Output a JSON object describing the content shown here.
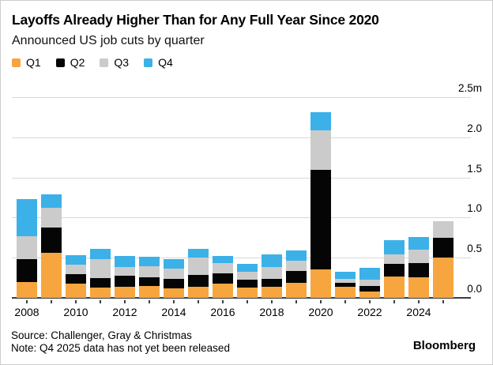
{
  "header": {
    "title": "Layoffs Already Higher Than for Any Full Year Since 2020",
    "subtitle": "Announced US job cuts by quarter"
  },
  "chart_data": {
    "type": "bar",
    "stacked": true,
    "title": "Layoffs Already Higher Than for Any Full Year Since 2020",
    "subtitle": "Announced US job cuts by quarter",
    "unit": "millions of announced job cuts",
    "categories": [
      "2008",
      "2009",
      "2010",
      "2011",
      "2012",
      "2013",
      "2014",
      "2015",
      "2016",
      "2017",
      "2018",
      "2019",
      "2020",
      "2021",
      "2022",
      "2023",
      "2024",
      "2025"
    ],
    "series": [
      {
        "name": "Q1",
        "color": "#F7A53E",
        "values": [
          0.2,
          0.56,
          0.18,
          0.13,
          0.14,
          0.15,
          0.12,
          0.14,
          0.18,
          0.13,
          0.14,
          0.19,
          0.35,
          0.14,
          0.08,
          0.27,
          0.26,
          0.5
        ]
      },
      {
        "name": "Q2",
        "color": "#050505",
        "values": [
          0.28,
          0.32,
          0.12,
          0.12,
          0.14,
          0.11,
          0.12,
          0.15,
          0.13,
          0.1,
          0.1,
          0.14,
          1.24,
          0.05,
          0.07,
          0.15,
          0.17,
          0.25
        ]
      },
      {
        "name": "Q3",
        "color": "#CBCBCB",
        "values": [
          0.29,
          0.24,
          0.11,
          0.23,
          0.1,
          0.13,
          0.12,
          0.21,
          0.12,
          0.09,
          0.14,
          0.13,
          0.5,
          0.05,
          0.08,
          0.12,
          0.17,
          0.2
        ]
      },
      {
        "name": "Q4",
        "color": "#3BB1E8",
        "values": [
          0.46,
          0.17,
          0.12,
          0.13,
          0.14,
          0.12,
          0.12,
          0.11,
          0.09,
          0.1,
          0.16,
          0.13,
          0.22,
          0.08,
          0.14,
          0.18,
          0.16,
          0
        ]
      }
    ],
    "ylim": [
      0,
      2.5
    ],
    "y_tick_labels": [
      "2.5m",
      "2.0",
      "1.5",
      "1.0",
      "0.5",
      "0.0"
    ],
    "x_tick_labels": [
      "2008",
      "2010",
      "2012",
      "2014",
      "2016",
      "2018",
      "2020",
      "2022",
      "2024"
    ],
    "grid": "horizontal",
    "legend_position": "top-left",
    "y_axis_side": "right"
  },
  "footer": {
    "source": "Source: Challenger, Gray & Christmas",
    "note": "Note: Q4 2025 data has not yet been released",
    "brand": "Bloomberg"
  }
}
